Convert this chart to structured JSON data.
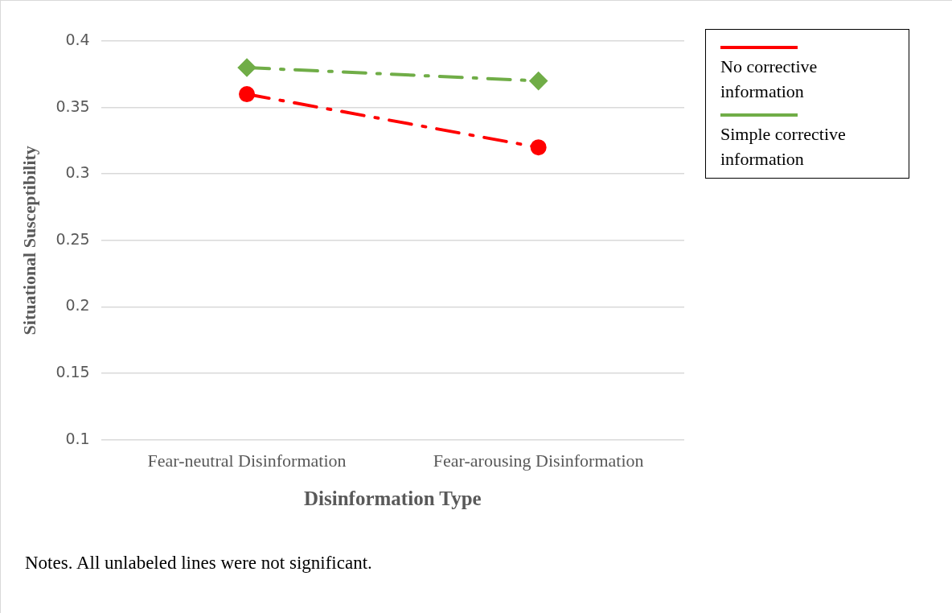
{
  "chart_data": {
    "type": "line",
    "xlabel": "Disinformation Type",
    "ylabel": "Situational Susceptibility",
    "categories": [
      "Fear-neutral Disinformation",
      "Fear-arousing Disinformation"
    ],
    "series": [
      {
        "name": "No corrective information",
        "color": "#ff0000",
        "values": [
          0.36,
          0.32
        ],
        "marker": "circle"
      },
      {
        "name": "Simple corrective information",
        "color": "#70ad47",
        "values": [
          0.38,
          0.37
        ],
        "marker": "diamond"
      }
    ],
    "ylim": [
      0.1,
      0.4
    ],
    "yticks": [
      0.1,
      0.15,
      0.2,
      0.25,
      0.3,
      0.35,
      0.4
    ],
    "grid": "y",
    "legend": "top right",
    "line_style": "dashed",
    "annotations": [
      "Notes. All unlabeled lines were not significant."
    ]
  }
}
